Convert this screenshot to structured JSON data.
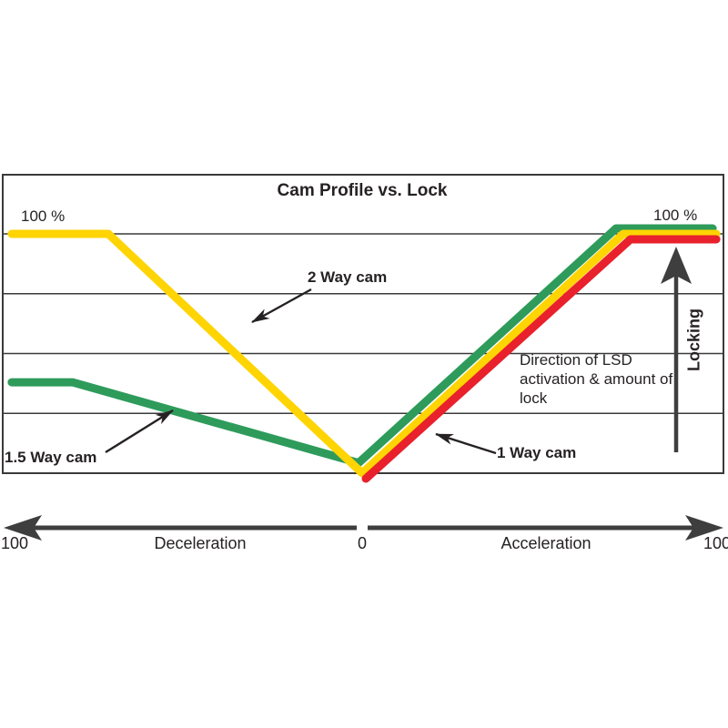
{
  "title": "Cam Profile vs. Lock",
  "y_labels": {
    "left": "100 %",
    "right": "100 %"
  },
  "series_labels": {
    "two_way": "2 Way cam",
    "one_five_way": "1.5 Way cam",
    "one_way": "1 Way cam"
  },
  "annotations": {
    "direction": "Direction of LSD activation & amount of lock",
    "locking": "Locking"
  },
  "x_axis": {
    "left_value": "100",
    "left_label": "Deceleration",
    "zero": "0",
    "right_label": "Acceleration",
    "right_value": "100"
  },
  "colors": {
    "two_way": "#FFD403",
    "one_five_way": "#2E9B5B",
    "one_way": "#E8212C",
    "grid": "#3a3a3a",
    "arrow": "#3e3e3e",
    "annotation": "#262223"
  },
  "chart_data": {
    "type": "line",
    "title": "Cam Profile vs. Lock",
    "xlabel": "Deceleration (-100 to 0) / Acceleration (0 to 100)",
    "ylabel": "Lock %",
    "ylim": [
      0,
      100
    ],
    "xlim": [
      -100,
      100
    ],
    "grid": "horizontal, 25% steps",
    "legend_position": "inline annotations",
    "series": [
      {
        "name": "2 Way cam",
        "color": "#FFD403",
        "points": [
          [
            -98,
            100
          ],
          [
            -71,
            100
          ],
          [
            0,
            0
          ],
          [
            73,
            100
          ],
          [
            99,
            100
          ]
        ]
      },
      {
        "name": "1.5 Way cam",
        "color": "#2E9B5B",
        "points": [
          [
            -98,
            38
          ],
          [
            -81,
            38
          ],
          [
            0,
            2
          ],
          [
            72,
            100
          ],
          [
            99,
            100
          ]
        ]
      },
      {
        "name": "1 Way cam",
        "color": "#E8212C",
        "points": [
          [
            0,
            0
          ],
          [
            74,
            100
          ],
          [
            98,
            100
          ]
        ]
      }
    ]
  }
}
